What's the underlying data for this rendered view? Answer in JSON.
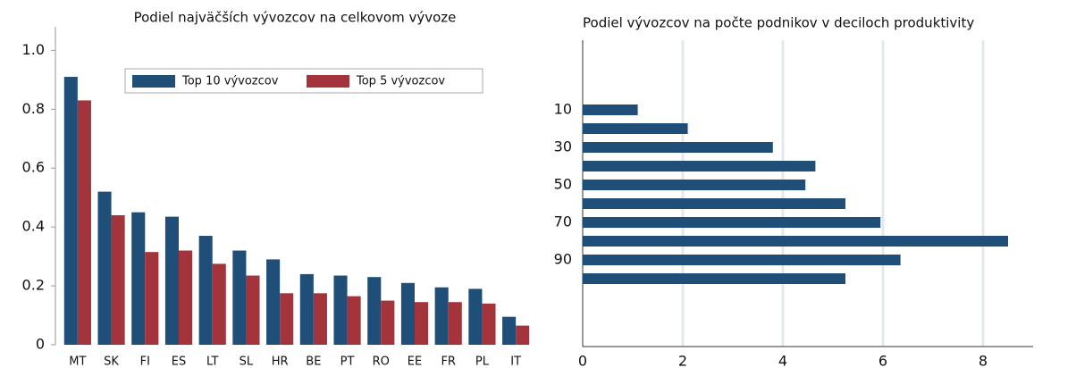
{
  "chart_data": [
    {
      "type": "bar",
      "title": "Podiel najväčších vývozcov na celkovom vývoze",
      "categories": [
        "MT",
        "SK",
        "FI",
        "ES",
        "LT",
        "SL",
        "HR",
        "BE",
        "PT",
        "RO",
        "EE",
        "FR",
        "PL",
        "IT"
      ],
      "series": [
        {
          "name": "Top 10 vývozcov",
          "color": "#1f4e79",
          "values": [
            0.91,
            0.52,
            0.45,
            0.435,
            0.37,
            0.32,
            0.29,
            0.24,
            0.235,
            0.23,
            0.21,
            0.195,
            0.19,
            0.095
          ]
        },
        {
          "name": "Top 5 vývozcov",
          "color": "#a3343c",
          "values": [
            0.83,
            0.44,
            0.315,
            0.32,
            0.275,
            0.235,
            0.175,
            0.175,
            0.165,
            0.15,
            0.145,
            0.145,
            0.14,
            0.065
          ]
        }
      ],
      "ylim": [
        0,
        1.08
      ],
      "yticks": [
        0,
        0.2,
        0.4,
        0.6,
        0.8,
        {
          "value": 1,
          "label": "1.0"
        }
      ],
      "legend": "top"
    },
    {
      "type": "hbar",
      "title": "Podiel vývozcov na počte podnikov v deciloch produktivity",
      "categories": [
        "10",
        null,
        "30",
        null,
        "50",
        null,
        "70",
        null,
        "90",
        null
      ],
      "values": [
        1.1,
        2.1,
        3.8,
        4.65,
        4.45,
        5.25,
        5.95,
        8.5,
        6.35,
        5.25
      ],
      "color": "#1f4e79",
      "xlim": [
        0,
        9
      ],
      "xticks": [
        0,
        2,
        4,
        6,
        8
      ],
      "grid": true
    }
  ]
}
